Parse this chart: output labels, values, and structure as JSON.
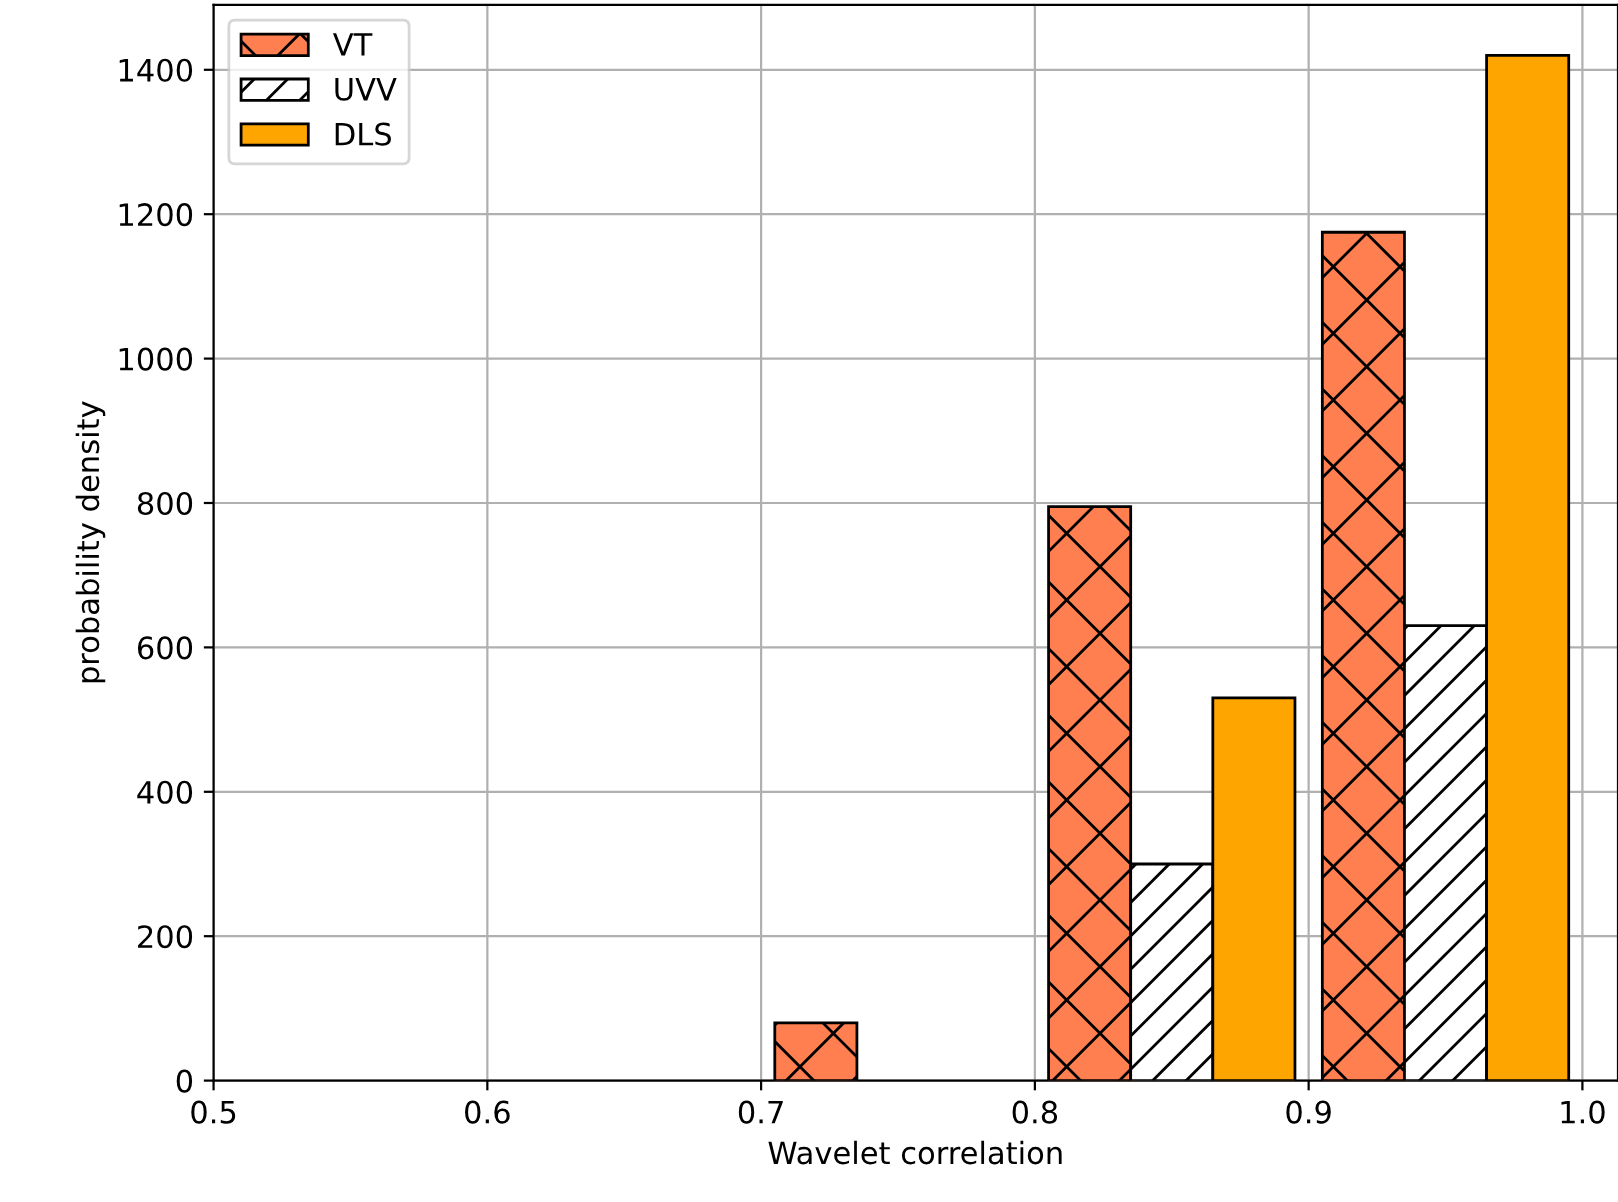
{
  "chart_data": {
    "type": "bar",
    "xlabel": "Wavelet correlation",
    "ylabel": "probability density",
    "series": [
      {
        "name": "VT",
        "color": "#ff7f50",
        "x": [
          0.72,
          0.82,
          0.92
        ],
        "values": [
          80,
          795,
          1175
        ]
      },
      {
        "name": "UVV",
        "color": "#ffffff",
        "x": [
          0.85,
          0.95
        ],
        "values": [
          300,
          630
        ]
      },
      {
        "name": "DLS",
        "color": "#ffa500",
        "x": [
          0.88,
          0.98
        ],
        "values": [
          530,
          1420
        ]
      }
    ],
    "xlim": [
      0.5,
      1.013
    ],
    "xticks": [
      {
        "value": 0.5,
        "label": "0.5"
      },
      {
        "value": 0.6,
        "label": "0.6"
      },
      {
        "value": 0.7,
        "label": "0.7"
      },
      {
        "value": 0.8,
        "label": "0.8"
      },
      {
        "value": 0.9,
        "label": "0.9"
      },
      {
        "value": 1.0,
        "label": "1.0"
      }
    ],
    "ylim": [
      0,
      1490
    ],
    "yticks": [
      0,
      200,
      400,
      600,
      800,
      1000,
      1200,
      1400
    ],
    "grid": true,
    "legend": "top left"
  }
}
